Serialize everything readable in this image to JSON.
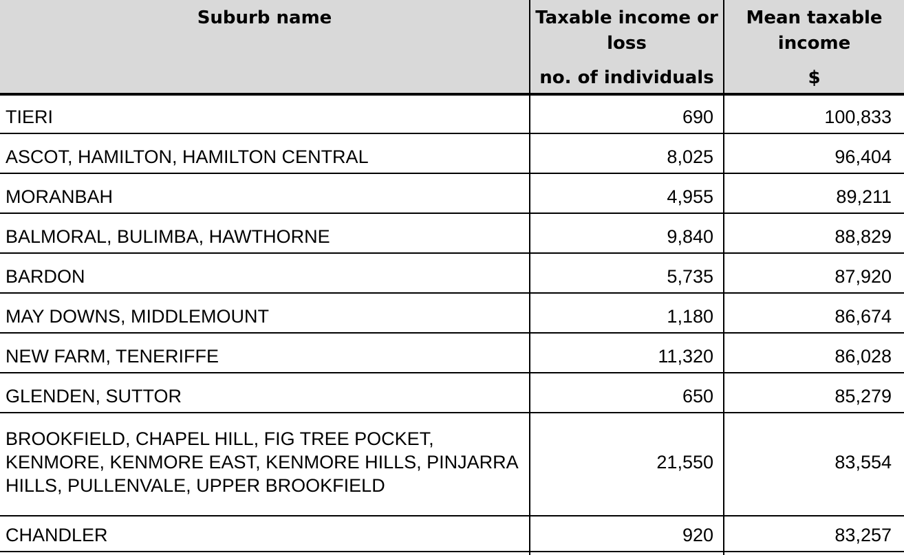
{
  "colors": {
    "header_bg": "#d9d9d9",
    "border": "#000000",
    "text": "#000000"
  },
  "table": {
    "header": {
      "col1": {
        "title": "Suburb name",
        "subtitle": ""
      },
      "col2": {
        "title": "Taxable income or loss",
        "subtitle": "no. of individuals"
      },
      "col3": {
        "title": "Mean taxable income",
        "subtitle": "$"
      }
    },
    "rows": [
      {
        "name": "TIERI",
        "individuals": "690",
        "mean_income": "100,833"
      },
      {
        "name": "ASCOT, HAMILTON, HAMILTON CENTRAL",
        "individuals": "8,025",
        "mean_income": "96,404"
      },
      {
        "name": "MORANBAH",
        "individuals": "4,955",
        "mean_income": "89,211"
      },
      {
        "name": "BALMORAL, BULIMBA, HAWTHORNE",
        "individuals": "9,840",
        "mean_income": "88,829"
      },
      {
        "name": "BARDON",
        "individuals": "5,735",
        "mean_income": "87,920"
      },
      {
        "name": "MAY DOWNS, MIDDLEMOUNT",
        "individuals": "1,180",
        "mean_income": "86,674"
      },
      {
        "name": "NEW FARM, TENERIFFE",
        "individuals": "11,320",
        "mean_income": "86,028"
      },
      {
        "name": "GLENDEN, SUTTOR",
        "individuals": "650",
        "mean_income": "85,279"
      },
      {
        "name": "BROOKFIELD, CHAPEL HILL, FIG TREE POCKET, KENMORE, KENMORE EAST, KENMORE HILLS, PINJARRA HILLS, PULLENVALE, UPPER BROOKFIELD",
        "individuals": "21,550",
        "mean_income": "83,554"
      },
      {
        "name": "CHANDLER",
        "individuals": "920",
        "mean_income": "83,257"
      }
    ]
  },
  "chart_data": {
    "type": "table",
    "title": "",
    "columns": [
      "Suburb name",
      "Taxable income or loss no. of individuals",
      "Mean taxable income $"
    ],
    "rows": [
      [
        "TIERI",
        690,
        100833
      ],
      [
        "ASCOT, HAMILTON, HAMILTON CENTRAL",
        8025,
        96404
      ],
      [
        "MORANBAH",
        4955,
        89211
      ],
      [
        "BALMORAL, BULIMBA, HAWTHORNE",
        9840,
        88829
      ],
      [
        "BARDON",
        5735,
        87920
      ],
      [
        "MAY DOWNS, MIDDLEMOUNT",
        1180,
        86674
      ],
      [
        "NEW FARM, TENERIFFE",
        11320,
        86028
      ],
      [
        "GLENDEN, SUTTOR",
        650,
        85279
      ],
      [
        "BROOKFIELD, CHAPEL HILL, FIG TREE POCKET, KENMORE, KENMORE EAST, KENMORE HILLS, PINJARRA HILLS, PULLENVALE, UPPER BROOKFIELD",
        21550,
        83554
      ],
      [
        "CHANDLER",
        920,
        83257
      ]
    ]
  }
}
